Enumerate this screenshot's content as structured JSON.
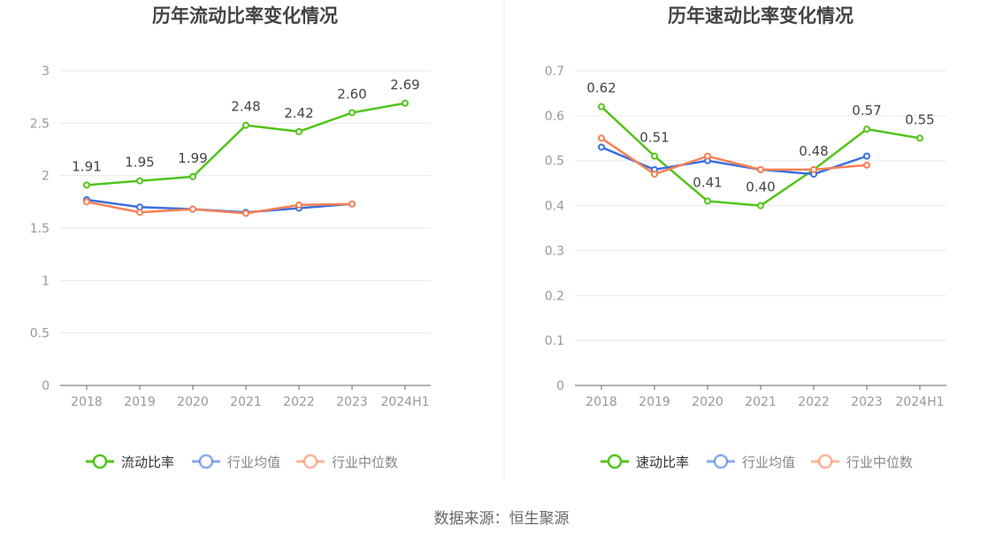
{
  "source": "数据来源：恒生聚源",
  "chart_data": [
    {
      "type": "line",
      "title": "历年流动比率变化情况",
      "categories": [
        "2018",
        "2019",
        "2020",
        "2021",
        "2022",
        "2023",
        "2024H1"
      ],
      "ylim": [
        0,
        3
      ],
      "yticks": [
        0,
        0.5,
        1,
        1.5,
        2,
        2.5,
        3
      ],
      "ytick_labels": [
        "0",
        "0.5",
        "1",
        "1.5",
        "2",
        "2.5",
        "3"
      ],
      "grid": true,
      "legend_position": "bottom",
      "series": [
        {
          "name": "流动比率",
          "color": "#52c41a",
          "values": [
            1.91,
            1.95,
            1.99,
            2.48,
            2.42,
            2.6,
            2.69
          ],
          "labels": [
            "1.91",
            "1.95",
            "1.99",
            "2.48",
            "2.42",
            "2.60",
            "2.69"
          ]
        },
        {
          "name": "行业均值",
          "color": "#3a6fe0",
          "values": [
            1.77,
            1.7,
            1.68,
            1.65,
            1.69,
            1.73,
            null
          ]
        },
        {
          "name": "行业中位数",
          "color": "#fa8052",
          "values": [
            1.75,
            1.65,
            1.68,
            1.64,
            1.72,
            1.73,
            null
          ]
        }
      ]
    },
    {
      "type": "line",
      "title": "历年速动比率变化情况",
      "categories": [
        "2018",
        "2019",
        "2020",
        "2021",
        "2022",
        "2023",
        "2024H1"
      ],
      "ylim": [
        0,
        0.7
      ],
      "yticks": [
        0,
        0.1,
        0.2,
        0.3,
        0.4,
        0.5,
        0.6,
        0.7
      ],
      "ytick_labels": [
        "0",
        "0.1",
        "0.2",
        "0.3",
        "0.4",
        "0.5",
        "0.6",
        "0.7"
      ],
      "grid": true,
      "legend_position": "bottom",
      "series": [
        {
          "name": "速动比率",
          "color": "#52c41a",
          "values": [
            0.62,
            0.51,
            0.41,
            0.4,
            0.48,
            0.57,
            0.55
          ],
          "labels": [
            "0.62",
            "0.51",
            "0.41",
            "0.40",
            "0.48",
            "0.57",
            "0.55"
          ]
        },
        {
          "name": "行业均值",
          "color": "#3a6fe0",
          "values": [
            0.53,
            0.48,
            0.5,
            0.48,
            0.47,
            0.51,
            null
          ]
        },
        {
          "name": "行业中位数",
          "color": "#fa8052",
          "values": [
            0.55,
            0.47,
            0.51,
            0.48,
            0.48,
            0.49,
            null
          ]
        }
      ]
    }
  ]
}
